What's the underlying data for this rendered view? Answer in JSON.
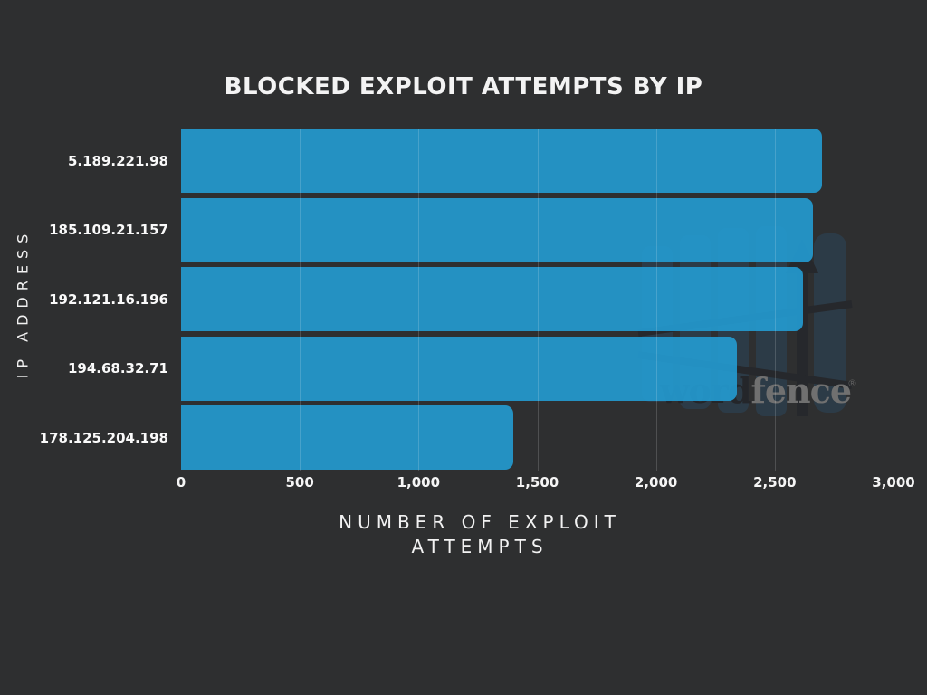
{
  "chart_data": {
    "type": "bar",
    "orientation": "horizontal",
    "title": "BLOCKED EXPLOIT ATTEMPTS BY IP",
    "xlabel": "NUMBER OF EXPLOIT ATTEMPTS",
    "ylabel": "IP ADDRESS",
    "categories": [
      "5.189.221.98",
      "185.109.21.157",
      "192.121.16.196",
      "194.68.32.71",
      "178.125.204.198"
    ],
    "values": [
      2700,
      2660,
      2620,
      2340,
      1400
    ],
    "xlim": [
      0,
      3000
    ],
    "xticks": [
      {
        "value": 0,
        "label": "0"
      },
      {
        "value": 500,
        "label": "500"
      },
      {
        "value": 1000,
        "label": "1,000"
      },
      {
        "value": 1500,
        "label": "1,500"
      },
      {
        "value": 2000,
        "label": "2,000"
      },
      {
        "value": 2500,
        "label": "2,500"
      },
      {
        "value": 3000,
        "label": "3,000"
      }
    ],
    "grid": "vertical-gridlines-on",
    "legend": false
  },
  "labels": {
    "xlabel_line1": "NUMBER OF EXPLOIT",
    "xlabel_line2": "ATTEMPTS"
  },
  "watermark": {
    "brand_word": "word",
    "brand_fence": "fence",
    "reg_mark": "®",
    "logo_icon": "wordfence-fence-shield-icon"
  },
  "colors": {
    "background": "#2e2f30",
    "bar": "#2499cd",
    "title_text": "#f3f3f3",
    "axis_text": "#f2f2f2",
    "gridline": "rgba(255,255,255,0.16)",
    "watermark_text": "#707070",
    "watermark_dark": "#24262a",
    "logo_slate": "#2c3b47"
  }
}
